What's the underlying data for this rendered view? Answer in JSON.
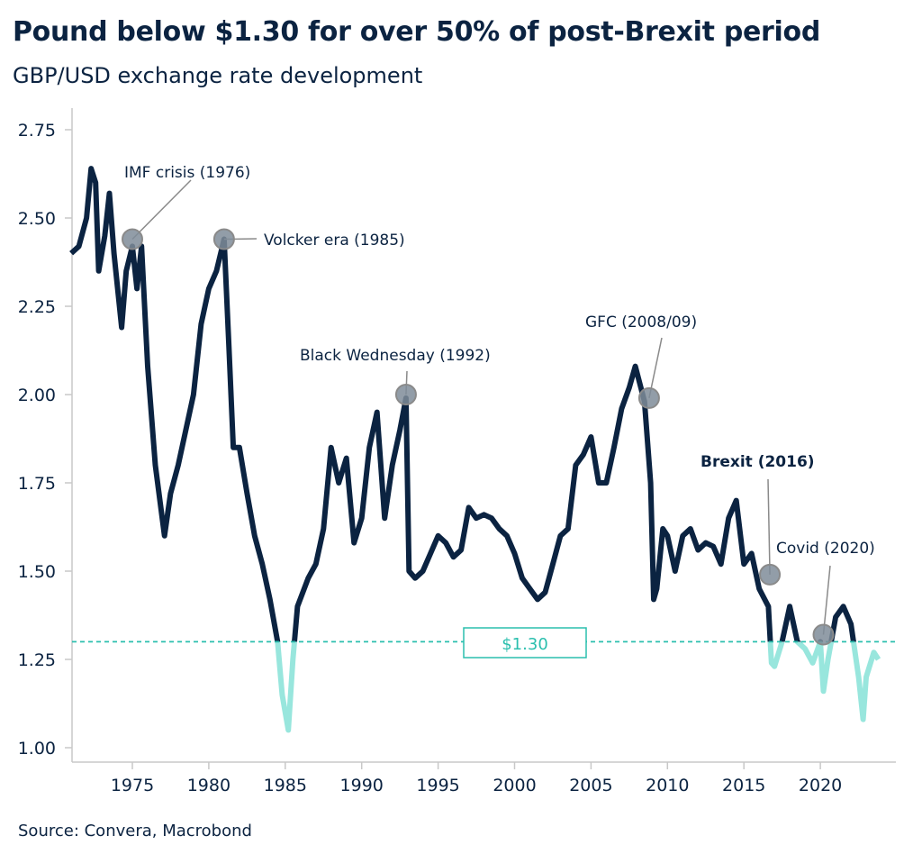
{
  "chart_data": {
    "type": "line",
    "title": "Pound below $1.30 for over 50% of post-Brexit period",
    "subtitle": "GBP/USD exchange rate development",
    "source": "Source: Convera, Macrobond",
    "xlim": [
      1971,
      2024.6
    ],
    "ylim": [
      1.0,
      2.8
    ],
    "x_ticks": [
      "1975",
      "1980",
      "1985",
      "1990",
      "1995",
      "2000",
      "2005",
      "2010",
      "2015",
      "2020"
    ],
    "y_ticks": [
      "1.00",
      "1.25",
      "1.50",
      "1.75",
      "2.00",
      "2.25",
      "2.50",
      "2.75"
    ],
    "grid": false,
    "threshold": {
      "value": 1.3,
      "label": "$1.30"
    },
    "colors": {
      "line": "#0b2341",
      "below_threshold": "#98e6dd",
      "threshold": "#2bbfae",
      "marker": "#7f8c99"
    },
    "series": [
      {
        "x": [
          1971.0,
          1971.5,
          1972.0,
          1972.3,
          1972.6,
          1972.8,
          1973.2,
          1973.5,
          1973.8,
          1974.3,
          1974.6,
          1975.0,
          1975.3,
          1975.6,
          1976.0,
          1976.5,
          1977.1,
          1977.5,
          1978.0,
          1978.5,
          1979.0,
          1979.5,
          1980.0,
          1980.5,
          1981.0,
          1981.3,
          1981.6,
          1982.0,
          1982.5,
          1983.0,
          1983.5,
          1984.0,
          1984.5,
          1984.8,
          1985.2,
          1985.5,
          1985.8,
          1986.5,
          1987.0,
          1987.5,
          1988.0,
          1988.5,
          1989.0,
          1989.5,
          1990.0,
          1990.5,
          1991.0,
          1991.5,
          1992.0,
          1992.5,
          1992.9,
          1993.1,
          1993.5,
          1994.0,
          1994.5,
          1995.0,
          1995.5,
          1996.0,
          1996.5,
          1997.0,
          1997.5,
          1998.0,
          1998.5,
          1999.0,
          1999.5,
          2000.0,
          2000.5,
          2001.0,
          2001.5,
          2002.0,
          2002.5,
          2003.0,
          2003.5,
          2004.0,
          2004.5,
          2005.0,
          2005.5,
          2006.0,
          2006.5,
          2007.0,
          2007.5,
          2007.9,
          2008.5,
          2008.9,
          2009.1,
          2009.3,
          2009.7,
          2010.0,
          2010.5,
          2011.0,
          2011.5,
          2012.0,
          2012.5,
          2013.0,
          2013.5,
          2014.0,
          2014.5,
          2015.0,
          2015.5,
          2016.0,
          2016.6,
          2016.8,
          2017.0,
          2017.5,
          2018.0,
          2018.5,
          2019.0,
          2019.5,
          2020.0,
          2020.2,
          2020.5,
          2021.0,
          2021.5,
          2022.0,
          2022.5,
          2022.8,
          2023.0,
          2023.5,
          2023.8
        ],
        "values": [
          2.4,
          2.42,
          2.5,
          2.64,
          2.6,
          2.35,
          2.45,
          2.57,
          2.4,
          2.19,
          2.35,
          2.42,
          2.3,
          2.42,
          2.08,
          1.8,
          1.6,
          1.72,
          1.8,
          1.9,
          2.0,
          2.2,
          2.3,
          2.35,
          2.44,
          2.15,
          1.85,
          1.85,
          1.72,
          1.6,
          1.52,
          1.42,
          1.3,
          1.15,
          1.05,
          1.25,
          1.4,
          1.48,
          1.52,
          1.62,
          1.85,
          1.75,
          1.82,
          1.58,
          1.65,
          1.85,
          1.95,
          1.65,
          1.8,
          1.9,
          1.99,
          1.5,
          1.48,
          1.5,
          1.55,
          1.6,
          1.58,
          1.54,
          1.56,
          1.68,
          1.65,
          1.66,
          1.65,
          1.62,
          1.6,
          1.55,
          1.48,
          1.45,
          1.42,
          1.44,
          1.52,
          1.6,
          1.62,
          1.8,
          1.83,
          1.88,
          1.75,
          1.75,
          1.85,
          1.96,
          2.02,
          2.08,
          1.98,
          1.75,
          1.42,
          1.45,
          1.62,
          1.6,
          1.5,
          1.6,
          1.62,
          1.56,
          1.58,
          1.57,
          1.52,
          1.65,
          1.7,
          1.52,
          1.55,
          1.45,
          1.4,
          1.24,
          1.23,
          1.3,
          1.4,
          1.3,
          1.28,
          1.24,
          1.3,
          1.16,
          1.25,
          1.37,
          1.4,
          1.35,
          1.2,
          1.08,
          1.2,
          1.27,
          1.25
        ]
      }
    ],
    "annotations": [
      {
        "label": "IMF crisis (1976)",
        "x": 1975.0,
        "y": 2.44,
        "bold": false
      },
      {
        "label": "Volcker era (1985)",
        "x": 1981.0,
        "y": 2.44,
        "bold": false
      },
      {
        "label": "Black Wednesday (1992)",
        "x": 1992.9,
        "y": 2.0,
        "bold": false
      },
      {
        "label": "GFC (2008/09)",
        "x": 2008.8,
        "y": 1.99,
        "bold": false
      },
      {
        "label": "Brexit (2016)",
        "x": 2016.7,
        "y": 1.49,
        "bold": true
      },
      {
        "label": "Covid (2020)",
        "x": 2020.2,
        "y": 1.32,
        "bold": false
      }
    ]
  }
}
